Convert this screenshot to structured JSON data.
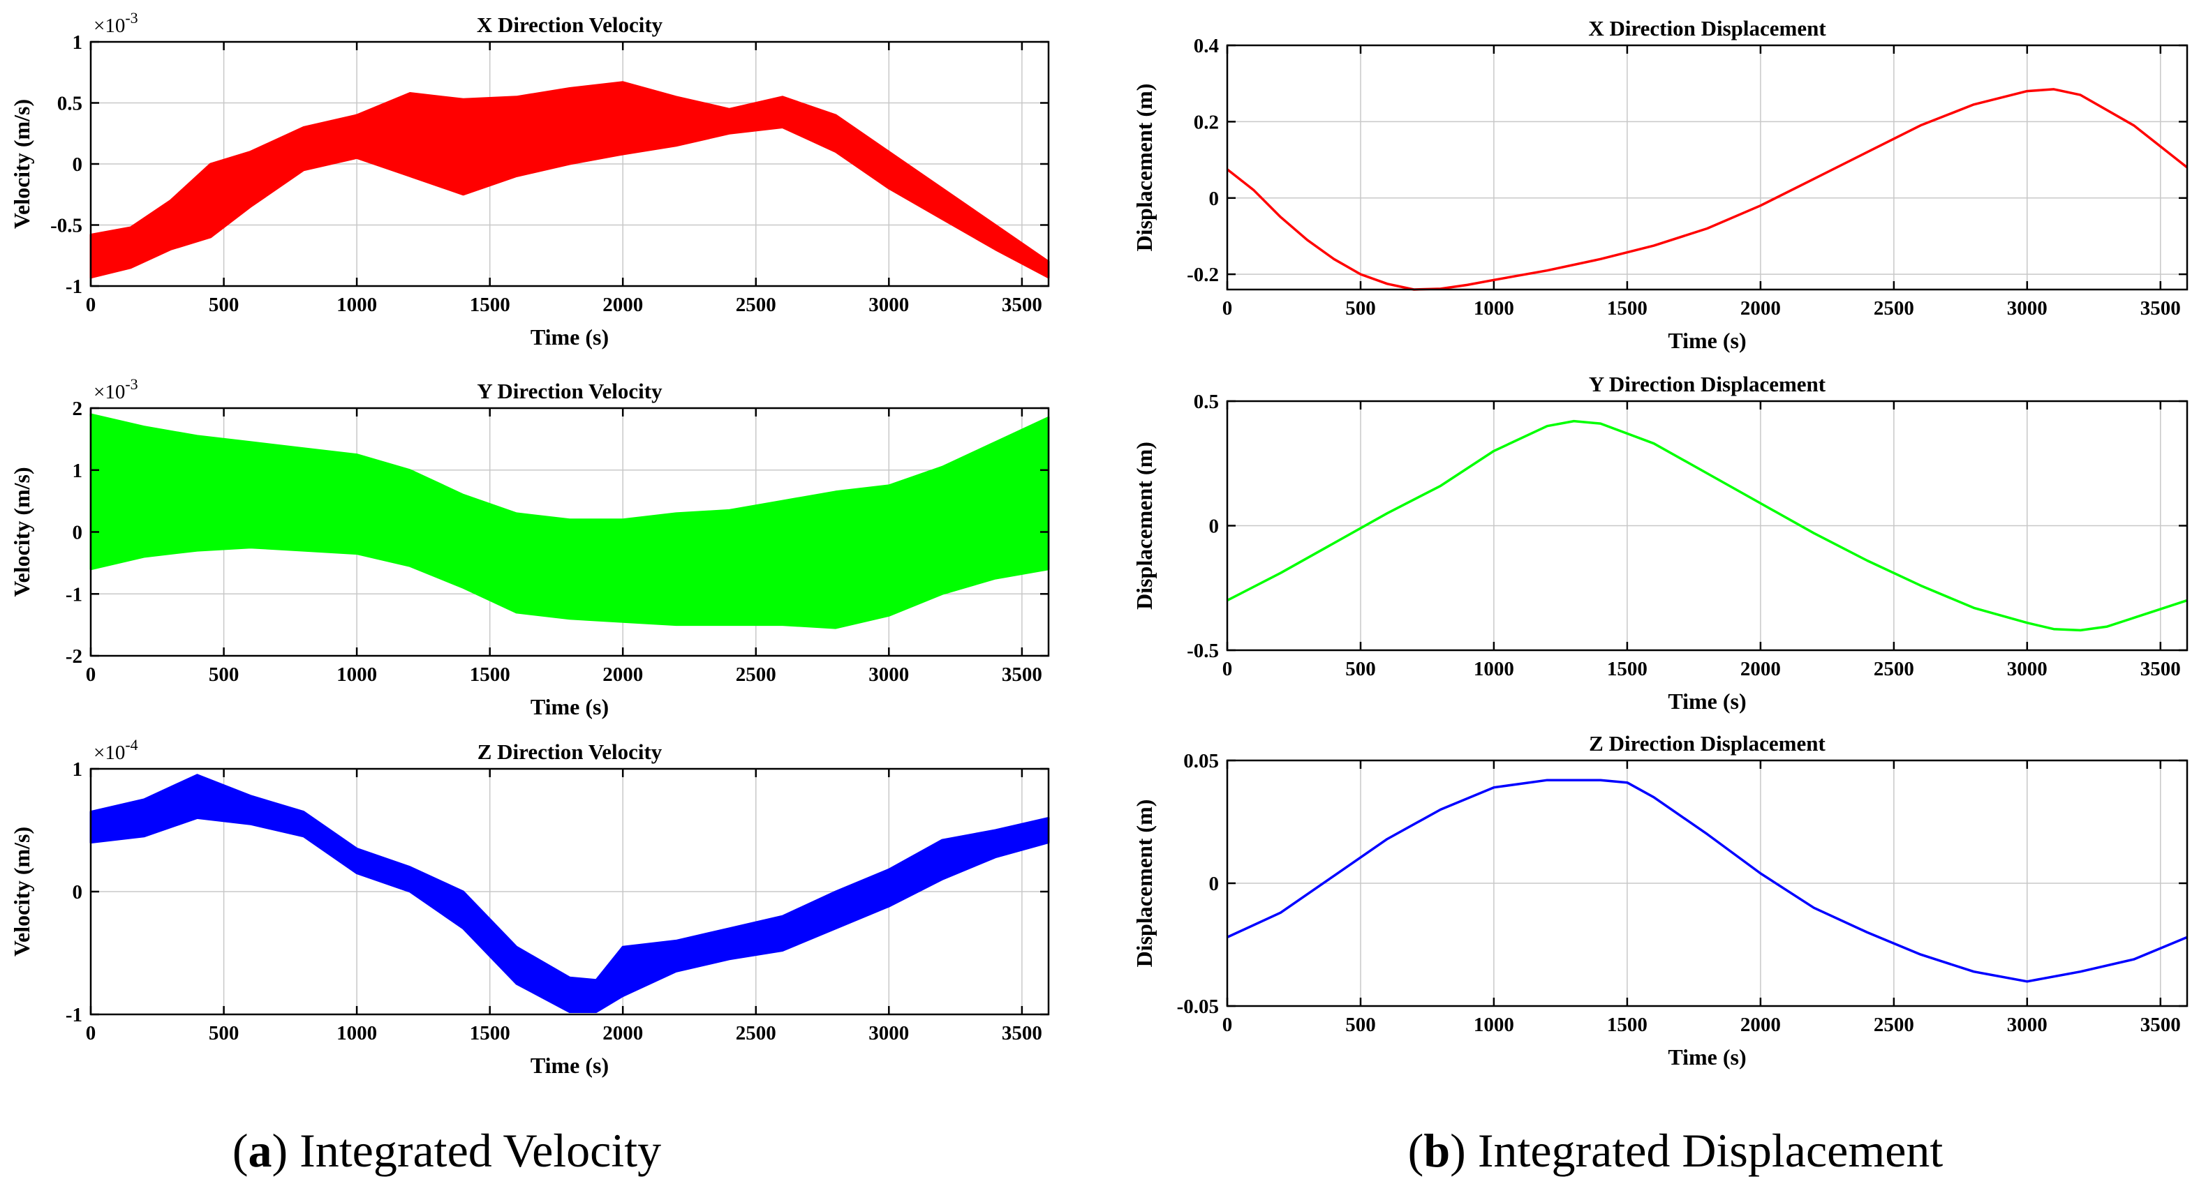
{
  "figure": {
    "captions": [
      {
        "letter": "a",
        "open": "(",
        "close": ") ",
        "text": "Integrated Velocity"
      },
      {
        "letter": "b",
        "open": "(",
        "close": ") ",
        "text": "Integrated Displacement"
      }
    ]
  },
  "chart_data": [
    {
      "type": "line",
      "title": "X Direction Velocity",
      "xlabel": "Time (s)",
      "ylabel": "Velocity (m/s)",
      "color": "#ff0000",
      "style": "band",
      "exponent": "-3",
      "exponent_prefix": "×10",
      "xlim": [
        0,
        3600
      ],
      "ylim": [
        -1,
        1
      ],
      "xticks": [
        0,
        500,
        1000,
        1500,
        2000,
        2500,
        3000,
        3500
      ],
      "xtick_labels": [
        "0",
        "500",
        "1000",
        "1500",
        "2000",
        "2500",
        "3000",
        "3500"
      ],
      "yticks": [
        -1,
        -0.5,
        0,
        0.5,
        1
      ],
      "ytick_labels": [
        "-1",
        "-0.5",
        "0",
        "0.5",
        "1"
      ],
      "x": [
        0,
        150,
        300,
        450,
        600,
        800,
        1000,
        1200,
        1400,
        1600,
        1800,
        2000,
        2200,
        2400,
        2600,
        2800,
        3000,
        3200,
        3400,
        3600
      ],
      "upper": [
        -0.58,
        -0.52,
        -0.3,
        0.0,
        0.1,
        0.3,
        0.4,
        0.58,
        0.53,
        0.55,
        0.62,
        0.67,
        0.55,
        0.45,
        0.55,
        0.4,
        0.1,
        -0.2,
        -0.5,
        -0.8
      ],
      "lower": [
        -0.93,
        -0.85,
        -0.7,
        -0.6,
        -0.35,
        -0.05,
        0.05,
        -0.1,
        -0.25,
        -0.1,
        0.0,
        0.08,
        0.15,
        0.25,
        0.3,
        0.1,
        -0.2,
        -0.45,
        -0.7,
        -0.93
      ]
    },
    {
      "type": "line",
      "title": "Y Direction Velocity",
      "xlabel": "Time (s)",
      "ylabel": "Velocity (m/s)",
      "color": "#00ff00",
      "style": "band",
      "exponent": "-3",
      "exponent_prefix": "×10",
      "xlim": [
        0,
        3600
      ],
      "ylim": [
        -2,
        2
      ],
      "xticks": [
        0,
        500,
        1000,
        1500,
        2000,
        2500,
        3000,
        3500
      ],
      "xtick_labels": [
        "0",
        "500",
        "1000",
        "1500",
        "2000",
        "2500",
        "3000",
        "3500"
      ],
      "yticks": [
        -2,
        -1,
        0,
        1,
        2
      ],
      "ytick_labels": [
        "-2",
        "-1",
        "0",
        "1",
        "2"
      ],
      "x": [
        0,
        200,
        400,
        600,
        800,
        1000,
        1200,
        1400,
        1600,
        1800,
        2000,
        2200,
        2400,
        2600,
        2800,
        3000,
        3200,
        3400,
        3600
      ],
      "upper": [
        1.9,
        1.7,
        1.55,
        1.45,
        1.35,
        1.25,
        1.0,
        0.6,
        0.3,
        0.2,
        0.2,
        0.3,
        0.35,
        0.5,
        0.65,
        0.75,
        1.05,
        1.45,
        1.85
      ],
      "lower": [
        -0.6,
        -0.4,
        -0.3,
        -0.25,
        -0.3,
        -0.35,
        -0.55,
        -0.9,
        -1.3,
        -1.4,
        -1.45,
        -1.5,
        -1.5,
        -1.5,
        -1.55,
        -1.35,
        -1.0,
        -0.75,
        -0.6
      ]
    },
    {
      "type": "line",
      "title": "Z Direction Velocity",
      "xlabel": "Time (s)",
      "ylabel": "Velocity (m/s)",
      "color": "#0000ff",
      "style": "band",
      "exponent": "-4",
      "exponent_prefix": "×10",
      "xlim": [
        0,
        3600
      ],
      "ylim": [
        -1,
        1
      ],
      "xticks": [
        0,
        500,
        1000,
        1500,
        2000,
        2500,
        3000,
        3500
      ],
      "xtick_labels": [
        "0",
        "500",
        "1000",
        "1500",
        "2000",
        "2500",
        "3000",
        "3500"
      ],
      "yticks": [
        -1,
        0,
        1
      ],
      "ytick_labels": [
        "-1",
        "0",
        "1"
      ],
      "x": [
        0,
        200,
        400,
        600,
        800,
        1000,
        1200,
        1400,
        1600,
        1800,
        1900,
        2000,
        2200,
        2400,
        2600,
        2800,
        3000,
        3200,
        3400,
        3600
      ],
      "upper": [
        0.65,
        0.75,
        0.95,
        0.78,
        0.65,
        0.35,
        0.2,
        0.0,
        -0.45,
        -0.7,
        -0.72,
        -0.45,
        -0.4,
        -0.3,
        -0.2,
        0.0,
        0.18,
        0.42,
        0.5,
        0.6
      ],
      "lower": [
        0.4,
        0.45,
        0.6,
        0.55,
        0.45,
        0.15,
        0.0,
        -0.3,
        -0.75,
        -0.98,
        -0.98,
        -0.85,
        -0.65,
        -0.55,
        -0.48,
        -0.3,
        -0.12,
        0.1,
        0.28,
        0.4
      ]
    },
    {
      "type": "line",
      "title": "X Direction Displacement",
      "xlabel": "Time (s)",
      "ylabel": "Displacement (m)",
      "color": "#ff0000",
      "style": "line",
      "xlim": [
        0,
        3600
      ],
      "ylim": [
        -0.24,
        0.4
      ],
      "xticks": [
        0,
        500,
        1000,
        1500,
        2000,
        2500,
        3000,
        3500
      ],
      "xtick_labels": [
        "0",
        "500",
        "1000",
        "1500",
        "2000",
        "2500",
        "3000",
        "3500"
      ],
      "yticks": [
        -0.2,
        0,
        0.2,
        0.4
      ],
      "ytick_labels": [
        "-0.2",
        "0",
        "0.2",
        "0.4"
      ],
      "x": [
        0,
        100,
        200,
        300,
        400,
        500,
        600,
        700,
        800,
        900,
        1000,
        1200,
        1400,
        1600,
        1800,
        2000,
        2200,
        2400,
        2600,
        2800,
        3000,
        3100,
        3200,
        3400,
        3600
      ],
      "y": [
        0.075,
        0.02,
        -0.05,
        -0.11,
        -0.16,
        -0.2,
        -0.225,
        -0.24,
        -0.238,
        -0.228,
        -0.215,
        -0.19,
        -0.16,
        -0.125,
        -0.08,
        -0.02,
        0.05,
        0.12,
        0.19,
        0.245,
        0.28,
        0.285,
        0.27,
        0.19,
        0.08
      ]
    },
    {
      "type": "line",
      "title": "Y Direction Displacement",
      "xlabel": "Time (s)",
      "ylabel": "Displacement (m)",
      "color": "#00ff00",
      "style": "line",
      "xlim": [
        0,
        3600
      ],
      "ylim": [
        -0.5,
        0.5
      ],
      "xticks": [
        0,
        500,
        1000,
        1500,
        2000,
        2500,
        3000,
        3500
      ],
      "xtick_labels": [
        "0",
        "500",
        "1000",
        "1500",
        "2000",
        "2500",
        "3000",
        "3500"
      ],
      "yticks": [
        -0.5,
        0,
        0.5
      ],
      "ytick_labels": [
        "-0.5",
        "0",
        "0.5"
      ],
      "x": [
        0,
        200,
        400,
        600,
        800,
        1000,
        1200,
        1300,
        1400,
        1600,
        1800,
        2000,
        2200,
        2400,
        2600,
        2800,
        3000,
        3100,
        3200,
        3300,
        3400,
        3600
      ],
      "y": [
        -0.3,
        -0.19,
        -0.07,
        0.05,
        0.16,
        0.3,
        0.4,
        0.42,
        0.41,
        0.33,
        0.21,
        0.09,
        -0.03,
        -0.14,
        -0.24,
        -0.33,
        -0.39,
        -0.415,
        -0.42,
        -0.405,
        -0.37,
        -0.3
      ]
    },
    {
      "type": "line",
      "title": "Z Direction Displacement",
      "xlabel": "Time (s)",
      "ylabel": "Displacement (m)",
      "color": "#0000ff",
      "style": "line",
      "xlim": [
        0,
        3600
      ],
      "ylim": [
        -0.05,
        0.05
      ],
      "xticks": [
        0,
        500,
        1000,
        1500,
        2000,
        2500,
        3000,
        3500
      ],
      "xtick_labels": [
        "0",
        "500",
        "1000",
        "1500",
        "2000",
        "2500",
        "3000",
        "3500"
      ],
      "yticks": [
        -0.05,
        0,
        0.05
      ],
      "ytick_labels": [
        "-0.05",
        "0",
        "0.05"
      ],
      "x": [
        0,
        200,
        400,
        600,
        800,
        1000,
        1200,
        1400,
        1500,
        1600,
        1800,
        2000,
        2200,
        2400,
        2600,
        2800,
        3000,
        3200,
        3400,
        3600
      ],
      "y": [
        -0.022,
        -0.012,
        0.003,
        0.018,
        0.03,
        0.039,
        0.042,
        0.042,
        0.041,
        0.035,
        0.02,
        0.004,
        -0.01,
        -0.02,
        -0.029,
        -0.036,
        -0.04,
        -0.036,
        -0.031,
        -0.022
      ]
    }
  ]
}
